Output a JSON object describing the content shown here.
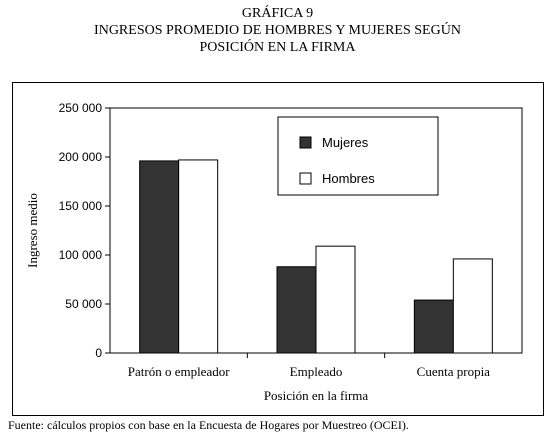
{
  "header": {
    "line1": "GRÁFICA 9",
    "line2": "INGRESOS PROMEDIO DE HOMBRES Y MUJERES SEGÚN",
    "line3": "POSICIÓN EN LA FIRMA"
  },
  "source": "Fuente: cálculos propios con base en la Encuesta de Hogares por Muestreo (OCEI).",
  "chart_data": {
    "type": "bar",
    "title": "GRÁFICA 9 INGRESOS PROMEDIO DE HOMBRES Y MUJERES SEGÚN POSICIÓN EN LA FIRMA",
    "xlabel": "Posición en la firma",
    "ylabel": "Ingreso medio",
    "ylim": [
      0,
      250000
    ],
    "yticks": [
      0,
      50000,
      100000,
      150000,
      200000,
      250000
    ],
    "ytick_labels": [
      "0",
      "50 000",
      "100 000",
      "150 000",
      "200 000",
      "250 000"
    ],
    "categories": [
      "Patrón o empleador",
      "Empleado",
      "Cuenta propia"
    ],
    "series": [
      {
        "name": "Mujeres",
        "color": "#333333",
        "values": [
          196000,
          88000,
          54000
        ]
      },
      {
        "name": "Hombres",
        "color": "#ffffff",
        "values": [
          197000,
          109000,
          96000
        ]
      }
    ],
    "legend_position": "top-right",
    "grid": false
  }
}
